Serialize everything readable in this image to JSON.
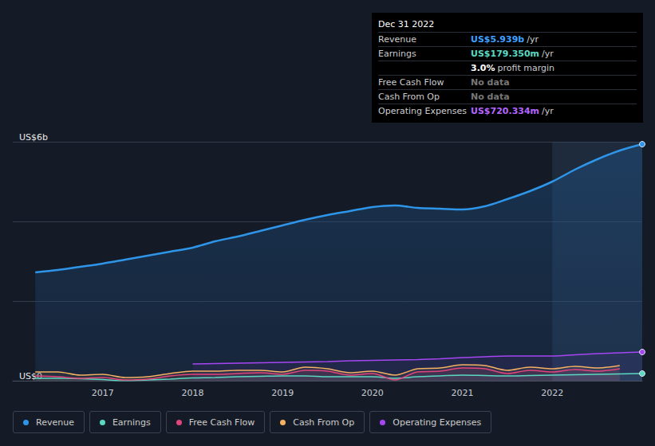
{
  "chart_data": {
    "type": "line",
    "x": [
      2016.25,
      2016.5,
      2016.75,
      2017.0,
      2017.25,
      2017.5,
      2017.75,
      2018.0,
      2018.25,
      2018.5,
      2018.75,
      2019.0,
      2019.25,
      2019.5,
      2019.75,
      2020.0,
      2020.25,
      2020.5,
      2020.75,
      2021.0,
      2021.25,
      2021.5,
      2021.75,
      2022.0,
      2022.25,
      2022.5,
      2022.75,
      2023.0
    ],
    "series": [
      {
        "name": "Revenue",
        "color": "#2e95e8",
        "marker": "circle",
        "values": [
          2.72,
          2.78,
          2.86,
          2.94,
          3.04,
          3.14,
          3.24,
          3.34,
          3.5,
          3.62,
          3.76,
          3.9,
          4.04,
          4.16,
          4.26,
          4.36,
          4.4,
          4.34,
          4.32,
          4.3,
          4.38,
          4.56,
          4.76,
          5.0,
          5.3,
          5.56,
          5.78,
          5.939
        ]
      },
      {
        "name": "Earnings",
        "color": "#5ad8c2",
        "marker": "circle",
        "values": [
          0.06,
          0.06,
          0.05,
          0.03,
          0.0,
          0.02,
          0.04,
          0.07,
          0.08,
          0.1,
          0.11,
          0.12,
          0.12,
          0.1,
          0.1,
          0.1,
          0.06,
          0.1,
          0.12,
          0.14,
          0.13,
          0.12,
          0.13,
          0.14,
          0.15,
          0.16,
          0.17,
          0.17935
        ]
      },
      {
        "name": "Free Cash Flow",
        "color": "#e0467c",
        "marker": "none",
        "values": [
          0.12,
          0.1,
          0.06,
          0.08,
          0.02,
          0.04,
          0.12,
          0.16,
          0.16,
          0.18,
          0.2,
          0.16,
          0.26,
          0.24,
          0.14,
          0.18,
          0.02,
          0.22,
          0.24,
          0.32,
          0.3,
          0.18,
          0.26,
          0.22,
          0.28,
          0.24,
          0.3,
          null
        ]
      },
      {
        "name": "Cash From Op",
        "color": "#f4b063",
        "marker": "none",
        "values": [
          0.22,
          0.22,
          0.14,
          0.16,
          0.08,
          0.1,
          0.18,
          0.24,
          0.24,
          0.26,
          0.26,
          0.22,
          0.34,
          0.3,
          0.2,
          0.24,
          0.14,
          0.3,
          0.32,
          0.4,
          0.38,
          0.26,
          0.34,
          0.3,
          0.36,
          0.32,
          0.38,
          null
        ]
      },
      {
        "name": "Operating Expenses",
        "color": "#a646f2",
        "marker": "circle",
        "values": [
          null,
          null,
          null,
          null,
          null,
          null,
          null,
          0.42,
          0.43,
          0.44,
          0.45,
          0.46,
          0.47,
          0.48,
          0.5,
          0.51,
          0.52,
          0.53,
          0.55,
          0.58,
          0.6,
          0.62,
          0.62,
          0.62,
          0.65,
          0.68,
          0.7,
          0.72034
        ]
      }
    ],
    "xlim": [
      2016,
      2023
    ],
    "xticks": [
      2017,
      2018,
      2019,
      2020,
      2021,
      2022
    ],
    "ylim": [
      0,
      6
    ],
    "yticks": [
      {
        "value": 0,
        "label": "US$0"
      },
      {
        "value": 2,
        "label": null
      },
      {
        "value": 4,
        "label": null
      },
      {
        "value": 6,
        "label": "US$6b"
      }
    ],
    "shaded_x": [
      2022,
      2023
    ],
    "grid": true,
    "legend": "bottom-left",
    "info_box": {
      "title": "Dec 31 2022",
      "rows": [
        {
          "label": "Revenue",
          "value": "US$5.939b",
          "unit": "/yr",
          "color": "#3fa0ff"
        },
        {
          "label": "Earnings",
          "value": "US$179.350m",
          "unit": "/yr",
          "color": "#5ad8c2"
        },
        {
          "value": "3.0%",
          "unit": "profit margin",
          "color": "#ffffff"
        },
        {
          "label": "Free Cash Flow",
          "value": "No data",
          "color": "#777777"
        },
        {
          "label": "Cash From Op",
          "value": "No data",
          "color": "#777777"
        },
        {
          "label": "Operating Expenses",
          "value": "US$720.334m",
          "unit": "/yr",
          "color": "#b565ff"
        }
      ]
    }
  }
}
